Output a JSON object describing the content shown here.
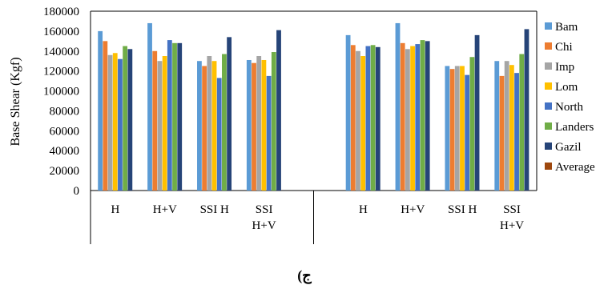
{
  "chart_data": {
    "type": "bar",
    "title": "",
    "xlabel": "",
    "ylabel": "Base Shear (Kgf)",
    "ylim": [
      0,
      180000
    ],
    "yticks": [
      0,
      20000,
      40000,
      60000,
      80000,
      100000,
      120000,
      140000,
      160000,
      180000
    ],
    "grid": false,
    "legend_position": "right",
    "categories": [
      "H",
      "H+V",
      "SSI H",
      "SSI H+V",
      "",
      "H",
      "H+V",
      "SSI H",
      "SSI H+V"
    ],
    "series": [
      {
        "name": "Bam",
        "color": "#5B9BD5",
        "values": [
          160000,
          168000,
          130000,
          131000,
          null,
          156000,
          168000,
          125000,
          130000
        ]
      },
      {
        "name": "Chi",
        "color": "#ED7D31",
        "values": [
          150000,
          140000,
          125000,
          128000,
          null,
          146000,
          148000,
          122000,
          115000
        ]
      },
      {
        "name": "Imp",
        "color": "#A5A5A5",
        "values": [
          136000,
          130000,
          135000,
          135000,
          null,
          140000,
          142000,
          125000,
          130000
        ]
      },
      {
        "name": "Lom",
        "color": "#FFC000",
        "values": [
          138000,
          135000,
          130000,
          131000,
          null,
          135000,
          145000,
          125000,
          126000
        ]
      },
      {
        "name": "North",
        "color": "#4472C4",
        "values": [
          132000,
          151000,
          113000,
          115000,
          null,
          145000,
          147000,
          116000,
          118000
        ]
      },
      {
        "name": "Landers",
        "color": "#70AD47",
        "values": [
          145000,
          148000,
          137000,
          139000,
          null,
          146000,
          151000,
          134000,
          137000
        ]
      },
      {
        "name": "Gazil",
        "color": "#264478",
        "values": [
          142000,
          148000,
          154000,
          161000,
          null,
          144000,
          150000,
          156000,
          162000
        ]
      },
      {
        "name": "Average",
        "color": "#9E480E",
        "values": [
          null,
          null,
          null,
          null,
          null,
          null,
          null,
          null,
          null
        ]
      }
    ]
  },
  "caption": "ج)"
}
